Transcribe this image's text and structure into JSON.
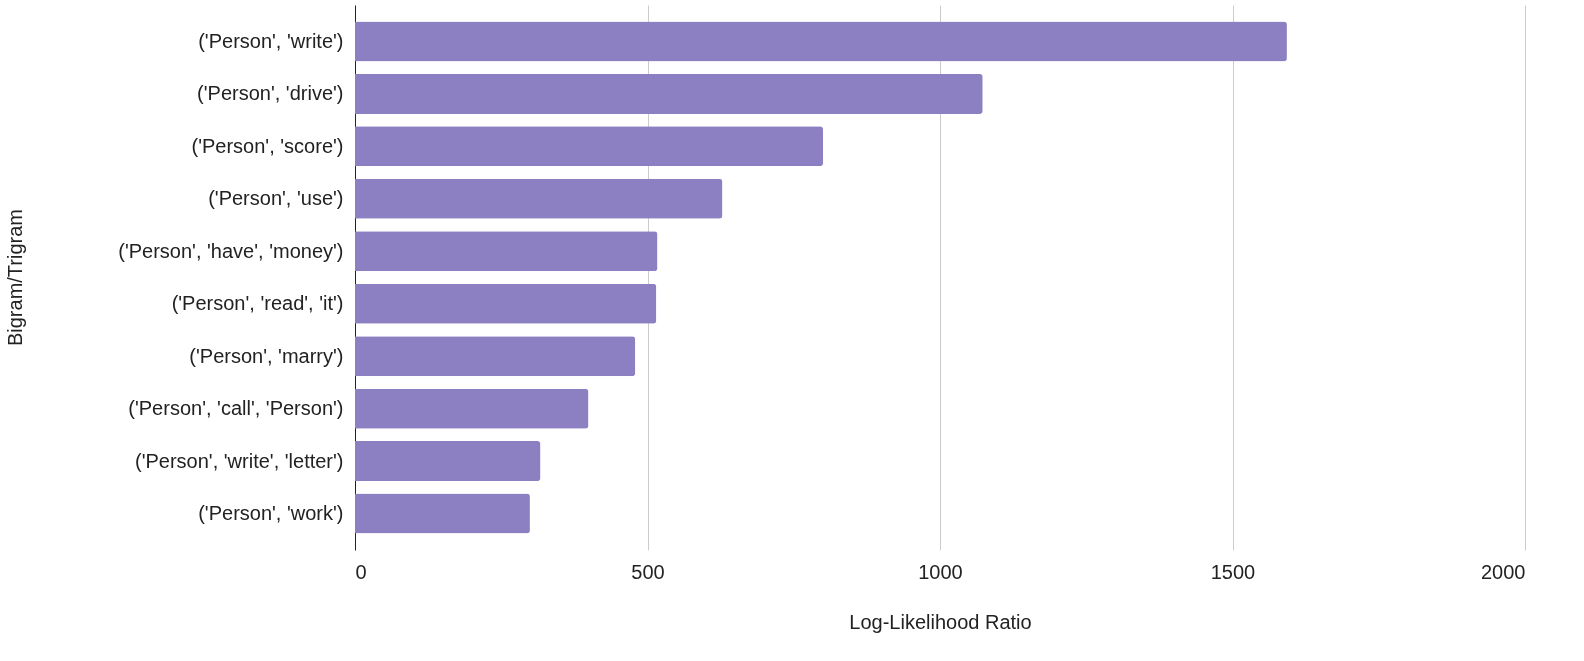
{
  "chart_data": {
    "type": "bar",
    "orientation": "horizontal",
    "ylabel": "Bigram/Trigram",
    "xlabel": "Log-Likelihood Ratio",
    "categories": [
      "('Person', 'write')",
      "('Person', 'drive')",
      "('Person', 'score')",
      "('Person', 'use')",
      "('Person', 'have', 'money')",
      "('Person', 'read', 'it')",
      "('Person', 'marry')",
      "('Person', 'call', 'Person')",
      "('Person', 'write', 'letter')",
      "('Person', 'work')"
    ],
    "values": [
      1593,
      1073,
      800,
      628,
      517,
      515,
      479,
      399,
      317,
      299
    ],
    "color": "#8c7fc2",
    "xlim": [
      0,
      2000
    ],
    "xticks": [
      0,
      500,
      1000,
      1500,
      2000
    ],
    "grid": "x"
  }
}
